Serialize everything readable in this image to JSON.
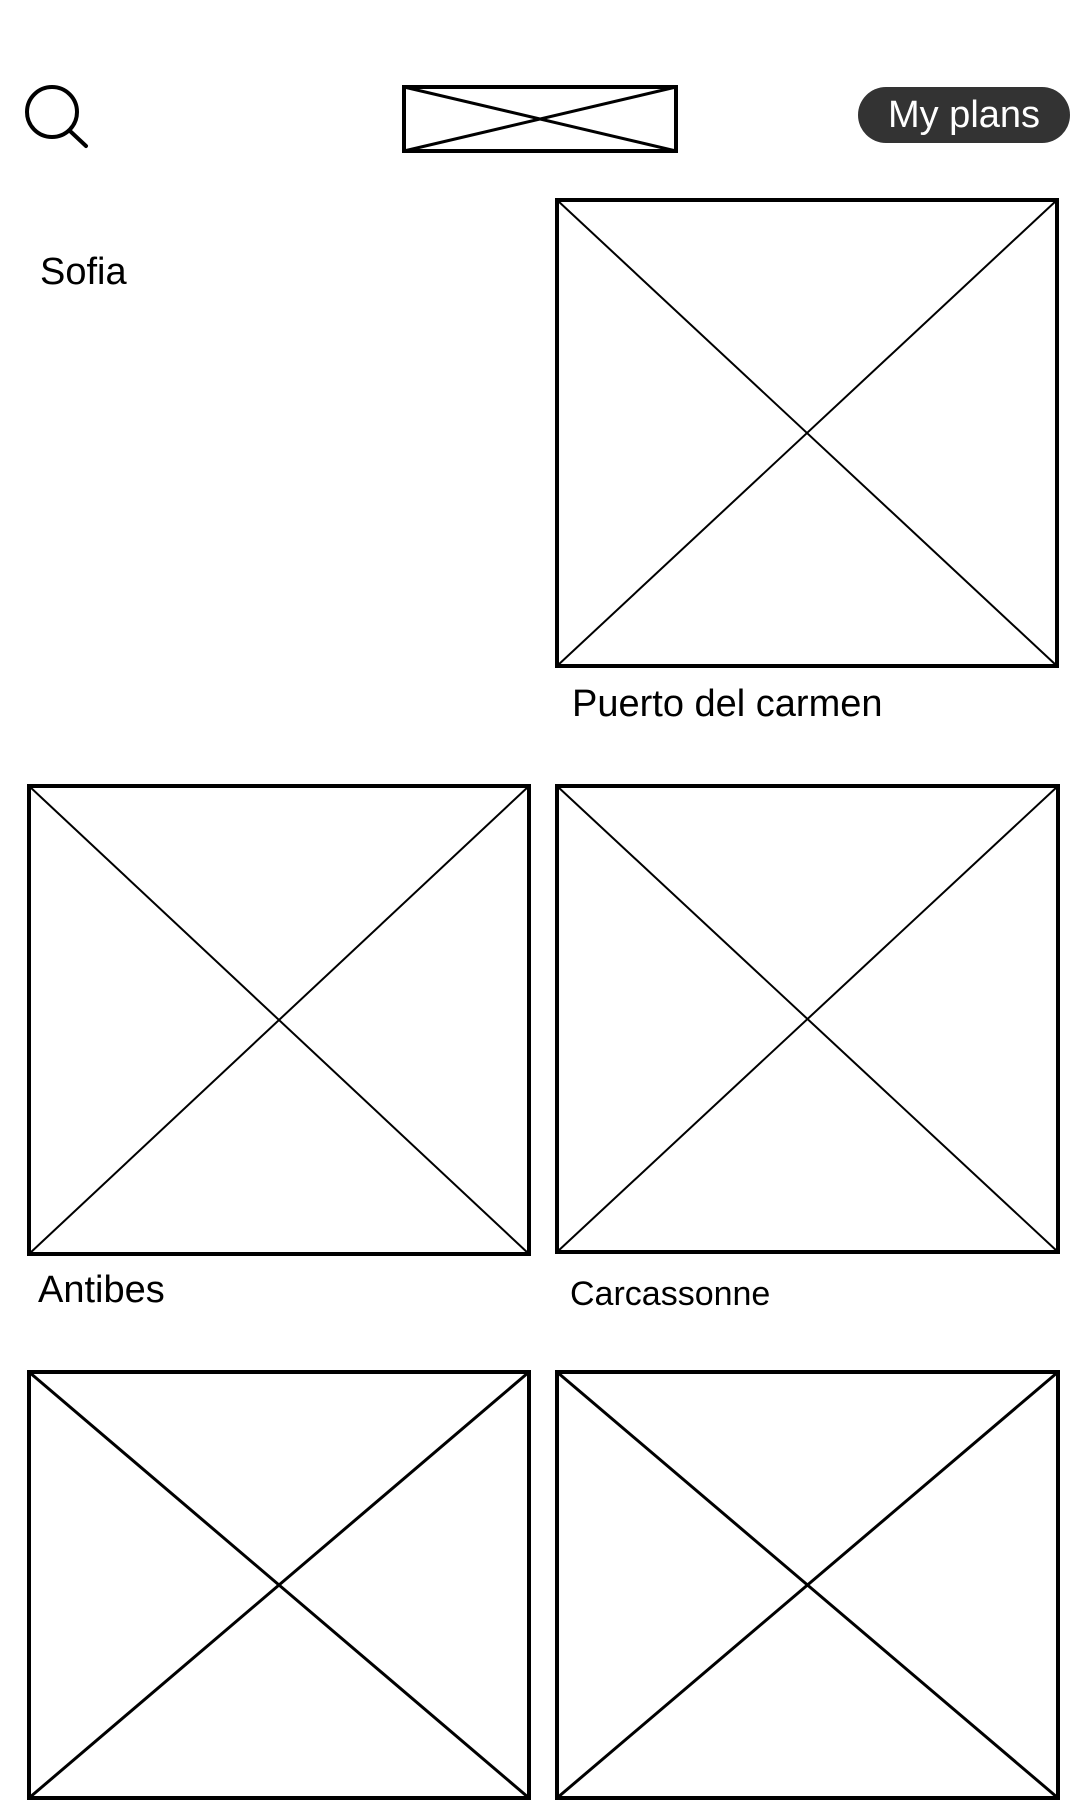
{
  "header": {
    "search_icon": "search-icon",
    "logo": "image-placeholder",
    "plans_button_label": "My plans",
    "plans_button_color": "#333333"
  },
  "destinations": [
    {
      "label": "Sofia"
    },
    {
      "label": "Puerto del carmen"
    },
    {
      "label": "Antibes"
    },
    {
      "label": "Carcassonne"
    },
    {
      "label": ""
    },
    {
      "label": ""
    }
  ]
}
